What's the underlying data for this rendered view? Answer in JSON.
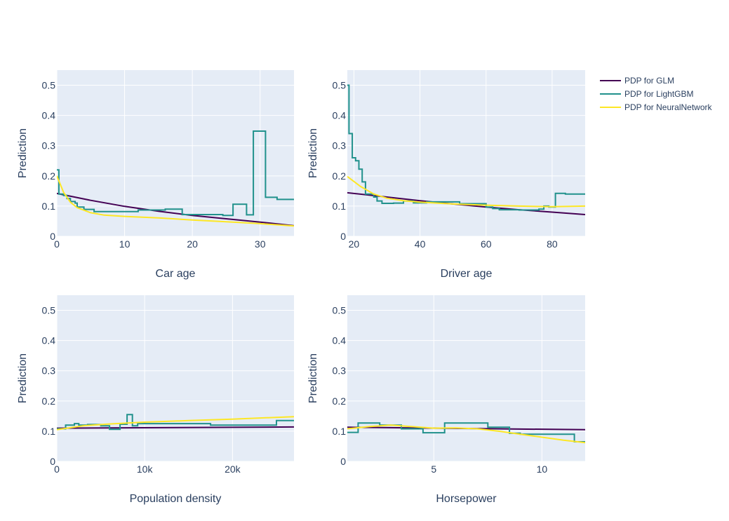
{
  "legend": {
    "entries": [
      {
        "name": "PDP for GLM",
        "color": "#440154"
      },
      {
        "name": "PDP for LightGBM",
        "color": "#21918c"
      },
      {
        "name": "PDP for NeuralNetwork",
        "color": "#fde725"
      }
    ],
    "placement": "top-right"
  },
  "chart_data": [
    {
      "type": "line",
      "xlabel": "Car age",
      "ylabel": "Prediction",
      "xlim": [
        0,
        35
      ],
      "ylim": [
        0,
        0.55
      ],
      "xticks": [
        {
          "v": 0,
          "label": "0"
        },
        {
          "v": 10,
          "label": "10"
        },
        {
          "v": 20,
          "label": "20"
        },
        {
          "v": 30,
          "label": "30"
        }
      ],
      "yticks": [
        {
          "v": 0,
          "label": "0"
        },
        {
          "v": 0.1,
          "label": "0.1"
        },
        {
          "v": 0.2,
          "label": "0.2"
        },
        {
          "v": 0.3,
          "label": "0.3"
        },
        {
          "v": 0.4,
          "label": "0.4"
        },
        {
          "v": 0.5,
          "label": "0.5"
        }
      ],
      "grid": true,
      "series": [
        {
          "name": "PDP for GLM",
          "color": "#440154",
          "shape": "line",
          "points": [
            [
              0,
              0.142
            ],
            [
              5,
              0.119
            ],
            [
              10,
              0.099
            ],
            [
              15,
              0.083
            ],
            [
              20,
              0.069
            ],
            [
              25,
              0.058
            ],
            [
              30,
              0.047
            ],
            [
              35,
              0.035
            ]
          ]
        },
        {
          "name": "PDP for LightGBM",
          "color": "#21918c",
          "shape": "hv",
          "points": [
            [
              0,
              0.22
            ],
            [
              0.3,
              0.14
            ],
            [
              1,
              0.135
            ],
            [
              1.5,
              0.125
            ],
            [
              2,
              0.115
            ],
            [
              2.7,
              0.11
            ],
            [
              3,
              0.097
            ],
            [
              4,
              0.089
            ],
            [
              5.5,
              0.082
            ],
            [
              12,
              0.087
            ],
            [
              16,
              0.09
            ],
            [
              18.5,
              0.072
            ],
            [
              24.5,
              0.069
            ],
            [
              26,
              0.106
            ],
            [
              28,
              0.071
            ],
            [
              29,
              0.348
            ],
            [
              30.8,
              0.129
            ],
            [
              32.5,
              0.122
            ],
            [
              35,
              0.122
            ]
          ]
        },
        {
          "name": "PDP for NeuralNetwork",
          "color": "#fde725",
          "shape": "line",
          "points": [
            [
              0,
              0.2
            ],
            [
              1,
              0.145
            ],
            [
              2,
              0.113
            ],
            [
              3,
              0.095
            ],
            [
              5,
              0.078
            ],
            [
              7,
              0.07
            ],
            [
              10,
              0.066
            ],
            [
              15,
              0.061
            ],
            [
              20,
              0.054
            ],
            [
              25,
              0.048
            ],
            [
              30,
              0.042
            ],
            [
              35,
              0.034
            ]
          ]
        }
      ]
    },
    {
      "type": "line",
      "xlabel": "Driver age",
      "ylabel": "Prediction",
      "xlim": [
        18,
        90
      ],
      "ylim": [
        0,
        0.55
      ],
      "xticks": [
        {
          "v": 20,
          "label": "20"
        },
        {
          "v": 40,
          "label": "40"
        },
        {
          "v": 60,
          "label": "60"
        },
        {
          "v": 80,
          "label": "80"
        }
      ],
      "yticks": [
        {
          "v": 0,
          "label": "0"
        },
        {
          "v": 0.1,
          "label": "0.1"
        },
        {
          "v": 0.2,
          "label": "0.2"
        },
        {
          "v": 0.3,
          "label": "0.3"
        },
        {
          "v": 0.4,
          "label": "0.4"
        },
        {
          "v": 0.5,
          "label": "0.5"
        }
      ],
      "grid": true,
      "series": [
        {
          "name": "PDP for GLM",
          "color": "#440154",
          "shape": "line",
          "points": [
            [
              18,
              0.144
            ],
            [
              30,
              0.13
            ],
            [
              40,
              0.118
            ],
            [
              50,
              0.107
            ],
            [
              60,
              0.097
            ],
            [
              70,
              0.088
            ],
            [
              80,
              0.08
            ],
            [
              90,
              0.072
            ]
          ]
        },
        {
          "name": "PDP for LightGBM",
          "color": "#21918c",
          "shape": "hv",
          "points": [
            [
              18,
              0.5
            ],
            [
              18.5,
              0.34
            ],
            [
              19.5,
              0.26
            ],
            [
              20.5,
              0.25
            ],
            [
              21.5,
              0.222
            ],
            [
              22.5,
              0.18
            ],
            [
              23.5,
              0.14
            ],
            [
              26,
              0.13
            ],
            [
              27,
              0.117
            ],
            [
              28.5,
              0.109
            ],
            [
              32,
              0.11
            ],
            [
              35,
              0.117
            ],
            [
              38,
              0.111
            ],
            [
              42,
              0.114
            ],
            [
              52,
              0.108
            ],
            [
              60,
              0.097
            ],
            [
              62,
              0.092
            ],
            [
              64,
              0.088
            ],
            [
              70,
              0.087
            ],
            [
              76,
              0.09
            ],
            [
              77.5,
              0.1
            ],
            [
              79,
              0.097
            ],
            [
              81,
              0.142
            ],
            [
              84,
              0.14
            ],
            [
              90,
              0.14
            ]
          ]
        },
        {
          "name": "PDP for NeuralNetwork",
          "color": "#fde725",
          "shape": "line",
          "points": [
            [
              18,
              0.198
            ],
            [
              22,
              0.165
            ],
            [
              26,
              0.14
            ],
            [
              30,
              0.126
            ],
            [
              35,
              0.118
            ],
            [
              40,
              0.113
            ],
            [
              50,
              0.107
            ],
            [
              60,
              0.103
            ],
            [
              70,
              0.1
            ],
            [
              80,
              0.098
            ],
            [
              90,
              0.1
            ]
          ]
        }
      ]
    },
    {
      "type": "line",
      "xlabel": "Population density",
      "ylabel": "Prediction",
      "xlim": [
        0,
        27000
      ],
      "ylim": [
        0,
        0.55
      ],
      "xticks": [
        {
          "v": 0,
          "label": "0"
        },
        {
          "v": 10000,
          "label": "10k"
        },
        {
          "v": 20000,
          "label": "20k"
        }
      ],
      "yticks": [
        {
          "v": 0,
          "label": "0"
        },
        {
          "v": 0.1,
          "label": "0.1"
        },
        {
          "v": 0.2,
          "label": "0.2"
        },
        {
          "v": 0.3,
          "label": "0.3"
        },
        {
          "v": 0.4,
          "label": "0.4"
        },
        {
          "v": 0.5,
          "label": "0.5"
        }
      ],
      "grid": true,
      "series": [
        {
          "name": "PDP for GLM",
          "color": "#440154",
          "shape": "line",
          "points": [
            [
              0,
              0.11
            ],
            [
              27000,
              0.114
            ]
          ]
        },
        {
          "name": "PDP for LightGBM",
          "color": "#21918c",
          "shape": "hv",
          "points": [
            [
              0,
              0.108
            ],
            [
              1000,
              0.12
            ],
            [
              2000,
              0.125
            ],
            [
              2500,
              0.12
            ],
            [
              3500,
              0.122
            ],
            [
              5000,
              0.118
            ],
            [
              6000,
              0.106
            ],
            [
              7200,
              0.123
            ],
            [
              8000,
              0.155
            ],
            [
              8600,
              0.118
            ],
            [
              9200,
              0.125
            ],
            [
              17500,
              0.12
            ],
            [
              25000,
              0.135
            ],
            [
              27000,
              0.135
            ]
          ]
        },
        {
          "name": "PDP for NeuralNetwork",
          "color": "#fde725",
          "shape": "line",
          "points": [
            [
              0,
              0.105
            ],
            [
              3000,
              0.118
            ],
            [
              6000,
              0.124
            ],
            [
              10000,
              0.13
            ],
            [
              15000,
              0.135
            ],
            [
              20000,
              0.14
            ],
            [
              27000,
              0.148
            ]
          ]
        }
      ]
    },
    {
      "type": "line",
      "xlabel": "Horsepower",
      "ylabel": "Prediction",
      "xlim": [
        1,
        12
      ],
      "ylim": [
        0,
        0.55
      ],
      "xticks": [
        {
          "v": 5,
          "label": "5"
        },
        {
          "v": 10,
          "label": "10"
        }
      ],
      "yticks": [
        {
          "v": 0,
          "label": "0"
        },
        {
          "v": 0.1,
          "label": "0.1"
        },
        {
          "v": 0.2,
          "label": "0.2"
        },
        {
          "v": 0.3,
          "label": "0.3"
        },
        {
          "v": 0.4,
          "label": "0.4"
        },
        {
          "v": 0.5,
          "label": "0.5"
        }
      ],
      "grid": true,
      "series": [
        {
          "name": "PDP for GLM",
          "color": "#440154",
          "shape": "line",
          "points": [
            [
              1,
              0.113
            ],
            [
              12,
              0.105
            ]
          ]
        },
        {
          "name": "PDP for LightGBM",
          "color": "#21918c",
          "shape": "hv",
          "points": [
            [
              1,
              0.096
            ],
            [
              1.5,
              0.127
            ],
            [
              2.5,
              0.12
            ],
            [
              3.5,
              0.108
            ],
            [
              4.5,
              0.095
            ],
            [
              5.5,
              0.127
            ],
            [
              7.5,
              0.113
            ],
            [
              8.5,
              0.093
            ],
            [
              9,
              0.09
            ],
            [
              11.5,
              0.065
            ],
            [
              12,
              0.065
            ]
          ]
        },
        {
          "name": "PDP for NeuralNetwork",
          "color": "#fde725",
          "shape": "line",
          "points": [
            [
              1,
              0.108
            ],
            [
              2,
              0.115
            ],
            [
              3,
              0.12
            ],
            [
              4,
              0.115
            ],
            [
              5,
              0.11
            ],
            [
              6,
              0.111
            ],
            [
              7,
              0.108
            ],
            [
              8,
              0.1
            ],
            [
              9,
              0.09
            ],
            [
              10,
              0.08
            ],
            [
              11,
              0.07
            ],
            [
              12,
              0.062
            ]
          ]
        }
      ]
    }
  ]
}
